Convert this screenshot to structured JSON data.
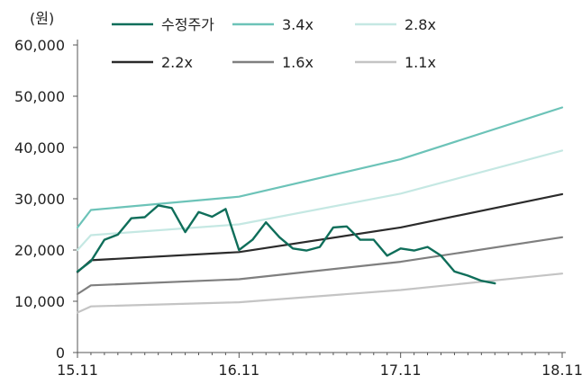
{
  "chart_data": {
    "type": "line",
    "unit_label": "(원)",
    "ylim": [
      0,
      60000
    ],
    "y_ticks": [
      "60,000",
      "50,000",
      "40,000",
      "30,000",
      "20,000",
      "10,000",
      "0"
    ],
    "x_ticks": [
      "15.11",
      "16.11",
      "17.11",
      "18.11"
    ],
    "grid": false,
    "legend_position": "top",
    "series": [
      {
        "name": "수정주가",
        "color": "#0f6e5a",
        "points": [
          [
            "15.11",
            15800
          ],
          [
            "15.12",
            17800
          ],
          [
            "16.01",
            22000
          ],
          [
            "16.02",
            23000
          ],
          [
            "16.03",
            26200
          ],
          [
            "16.04",
            26400
          ],
          [
            "16.05",
            28700
          ],
          [
            "16.06",
            28200
          ],
          [
            "16.07",
            23500
          ],
          [
            "16.08",
            27400
          ],
          [
            "16.09",
            26500
          ],
          [
            "16.10",
            28000
          ],
          [
            "16.11",
            20000
          ],
          [
            "16.12",
            22000
          ],
          [
            "17.01",
            25400
          ],
          [
            "17.02",
            22500
          ],
          [
            "17.03",
            20300
          ],
          [
            "17.04",
            19900
          ],
          [
            "17.05",
            20600
          ],
          [
            "17.06",
            24400
          ],
          [
            "17.07",
            24600
          ],
          [
            "17.08",
            22000
          ],
          [
            "17.09",
            22000
          ],
          [
            "17.10",
            18900
          ],
          [
            "17.11",
            20300
          ],
          [
            "17.12",
            19900
          ],
          [
            "18.01",
            20600
          ],
          [
            "18.02",
            18900
          ],
          [
            "18.03",
            15800
          ],
          [
            "18.04",
            15000
          ],
          [
            "18.05",
            14000
          ],
          [
            "18.06",
            13500
          ]
        ]
      },
      {
        "name": "3.4x",
        "color": "#6cc3b8",
        "points": [
          [
            "15.11",
            24400
          ],
          [
            "15.12",
            27800
          ],
          [
            "16.11",
            30400
          ],
          [
            "17.11",
            37700
          ],
          [
            "18.11",
            47800
          ]
        ]
      },
      {
        "name": "2.8x",
        "color": "#c5e8e3",
        "points": [
          [
            "15.11",
            20000
          ],
          [
            "15.12",
            22900
          ],
          [
            "16.11",
            25000
          ],
          [
            "17.11",
            31000
          ],
          [
            "18.11",
            39400
          ]
        ]
      },
      {
        "name": "2.2x",
        "color": "#2b2b2b",
        "points": [
          [
            "15.11",
            15700
          ],
          [
            "15.12",
            18000
          ],
          [
            "16.11",
            19600
          ],
          [
            "17.11",
            24400
          ],
          [
            "18.11",
            30900
          ]
        ]
      },
      {
        "name": "1.6x",
        "color": "#7f7f7f",
        "points": [
          [
            "15.11",
            11400
          ],
          [
            "15.12",
            13100
          ],
          [
            "16.11",
            14300
          ],
          [
            "17.11",
            17700
          ],
          [
            "18.11",
            22500
          ]
        ]
      },
      {
        "name": "1.1x",
        "color": "#c4c4c4",
        "points": [
          [
            "15.11",
            7800
          ],
          [
            "15.12",
            9000
          ],
          [
            "16.11",
            9800
          ],
          [
            "17.11",
            12200
          ],
          [
            "18.11",
            15400
          ]
        ]
      }
    ]
  }
}
